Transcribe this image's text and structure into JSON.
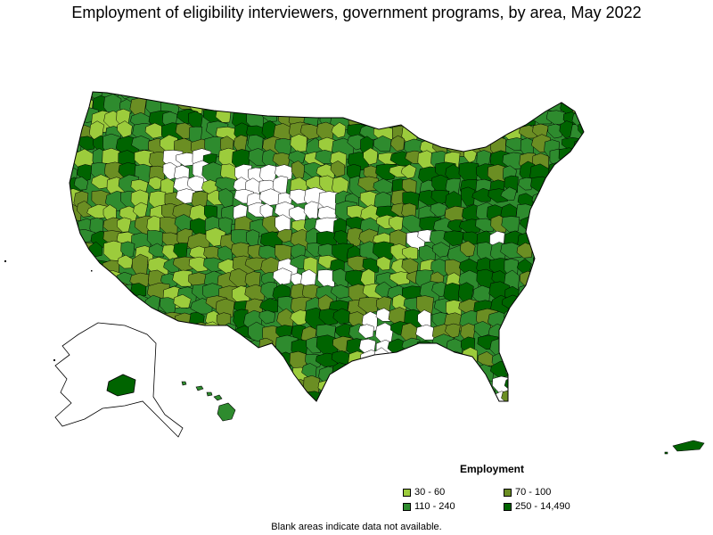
{
  "title": "Employment of eligibility interviewers, government programs, by area, May 2022",
  "legend": {
    "title": "Employment",
    "bins": [
      {
        "label": "30 - 60",
        "color": "#9ccc3c"
      },
      {
        "label": "70 - 100",
        "color": "#6b8e23"
      },
      {
        "label": "110 - 240",
        "color": "#2e8b2e"
      },
      {
        "label": "250 - 14,490",
        "color": "#006400"
      }
    ]
  },
  "footnote": "Blank areas indicate data not available.",
  "colors": {
    "no_data": "#ffffff",
    "border": "#000000"
  }
}
